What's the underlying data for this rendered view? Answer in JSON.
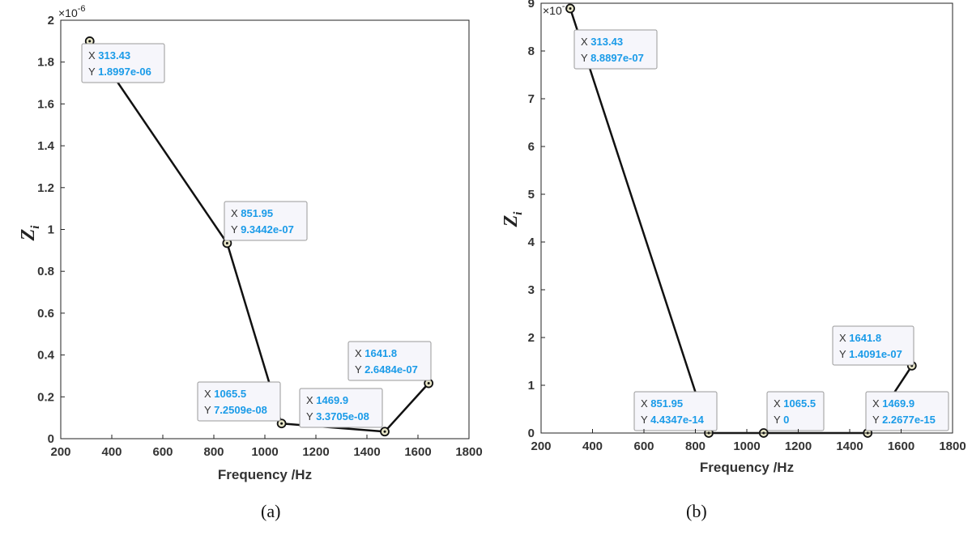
{
  "chart_data": [
    {
      "type": "line",
      "panel": "(a)",
      "x": [
        313.43,
        851.95,
        1065.5,
        1469.9,
        1641.8
      ],
      "y": [
        1.8997e-06,
        9.3442e-07,
        7.2509e-08,
        3.3705e-08,
        2.6484e-07
      ],
      "xlabel": "Frequency /Hz",
      "ylabel": "Z",
      "ylabel_sub": "i",
      "xlim": [
        200,
        1800
      ],
      "ylim": [
        0,
        2
      ],
      "y_exponent_base": "×10",
      "y_exponent": "-6",
      "xticks": [
        "200",
        "400",
        "600",
        "800",
        "1000",
        "1200",
        "1400",
        "1600",
        "1800"
      ],
      "yticks": [
        "0",
        "0.2",
        "0.4",
        "0.6",
        "0.8",
        "1",
        "1.2",
        "1.4",
        "1.6",
        "1.8",
        "2"
      ],
      "datatips": [
        {
          "x": "313.43",
          "y": "1.8997e-06"
        },
        {
          "x": "851.95",
          "y": "9.3442e-07"
        },
        {
          "x": "1065.5",
          "y": "7.2509e-08"
        },
        {
          "x": "1469.9",
          "y": "3.3705e-08"
        },
        {
          "x": "1641.8",
          "y": "2.6484e-07"
        }
      ],
      "grid": false
    },
    {
      "type": "line",
      "panel": "(b)",
      "x": [
        313.43,
        851.95,
        1065.5,
        1469.9,
        1641.8
      ],
      "y": [
        8.8897e-07,
        4.4347e-14,
        0,
        2.2677e-15,
        1.4091e-07
      ],
      "xlabel": "Frequency /Hz",
      "ylabel": "Z",
      "ylabel_sub": "i",
      "xlim": [
        200,
        1800
      ],
      "ylim": [
        0,
        9
      ],
      "y_exponent_base": "×10",
      "y_exponent": "-7",
      "xticks": [
        "200",
        "400",
        "600",
        "800",
        "1000",
        "1200",
        "1400",
        "1600",
        "1800"
      ],
      "yticks": [
        "0",
        "1",
        "2",
        "3",
        "4",
        "5",
        "6",
        "7",
        "8",
        "9"
      ],
      "datatips": [
        {
          "x": "313.43",
          "y": "8.8897e-07"
        },
        {
          "x": "851.95",
          "y": "4.4347e-14"
        },
        {
          "x": "1065.5",
          "y": "0"
        },
        {
          "x": "1469.9",
          "y": "2.2677e-15"
        },
        {
          "x": "1641.8",
          "y": "1.4091e-07"
        }
      ],
      "grid": false
    }
  ],
  "datatip_labels": {
    "x_key": "X",
    "y_key": "Y"
  },
  "colors": {
    "line": "#111111",
    "datatip_value": "#1a9be8",
    "marker_fill": "#e8e6c8"
  },
  "captions": {
    "a": "(a)",
    "b": "(b)"
  }
}
